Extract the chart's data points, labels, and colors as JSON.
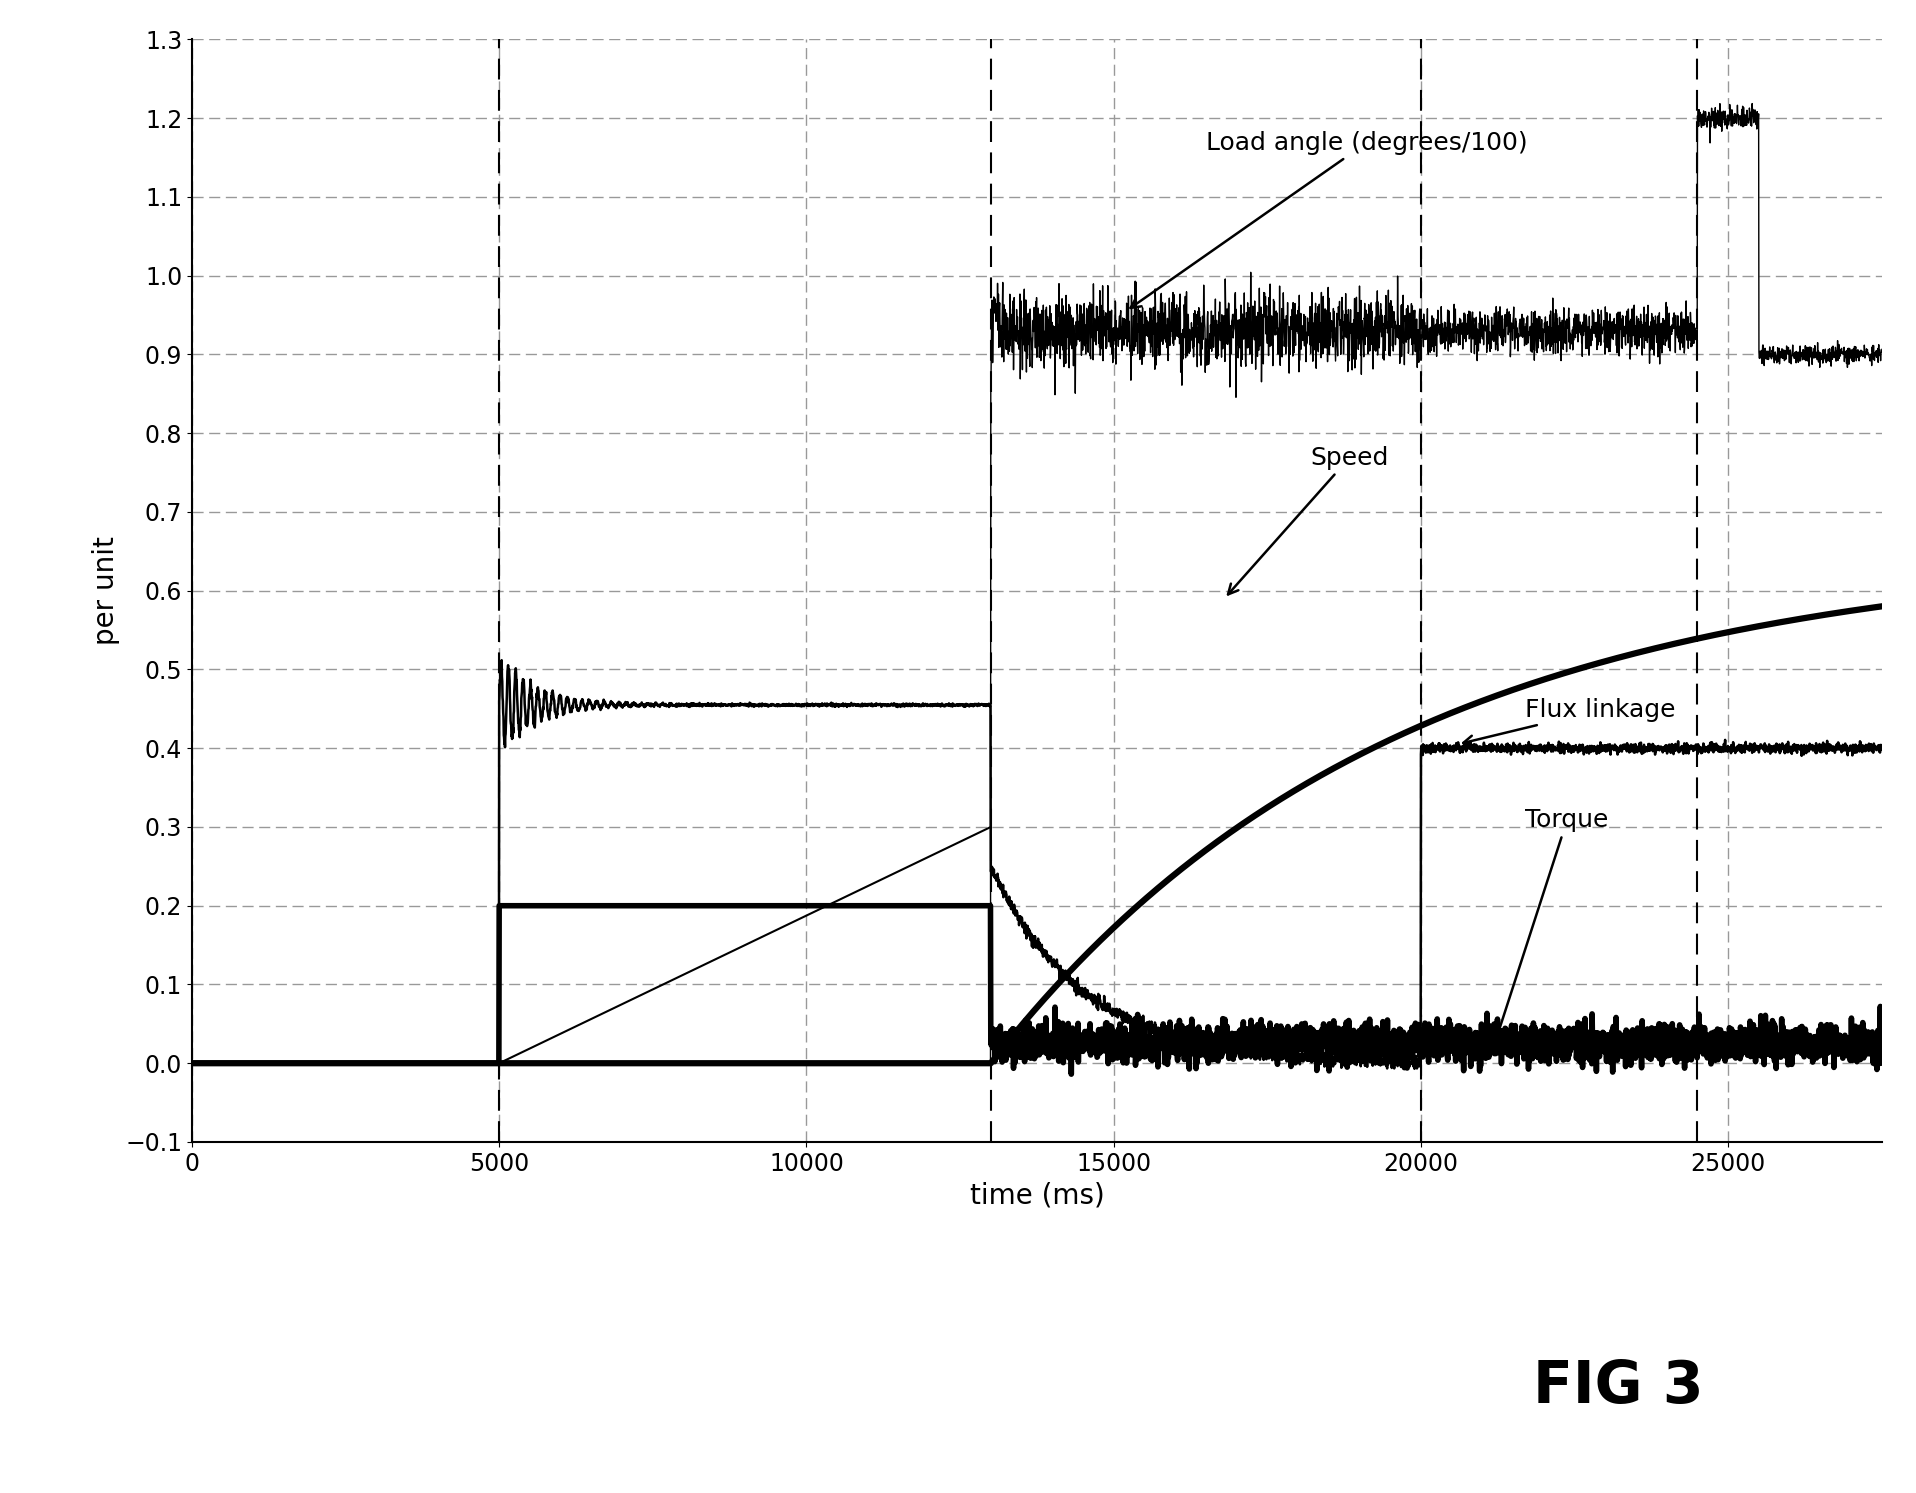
{
  "xlabel": "time (ms)",
  "ylabel": "per unit",
  "xlim": [
    0,
    27500
  ],
  "ylim": [
    -0.1,
    1.3
  ],
  "yticks": [
    -0.1,
    0,
    0.1,
    0.2,
    0.3,
    0.4,
    0.5,
    0.6,
    0.7,
    0.8,
    0.9,
    1.0,
    1.1,
    1.2,
    1.3
  ],
  "xticks": [
    0,
    5000,
    10000,
    15000,
    20000,
    25000
  ],
  "grid_color": "#999999",
  "background_color": "#ffffff",
  "fig_label": "FIG 3",
  "t1": 5000,
  "t2": 13000,
  "t3": 20000,
  "t4": 24500,
  "t5": 25500,
  "noise_seed": 42
}
